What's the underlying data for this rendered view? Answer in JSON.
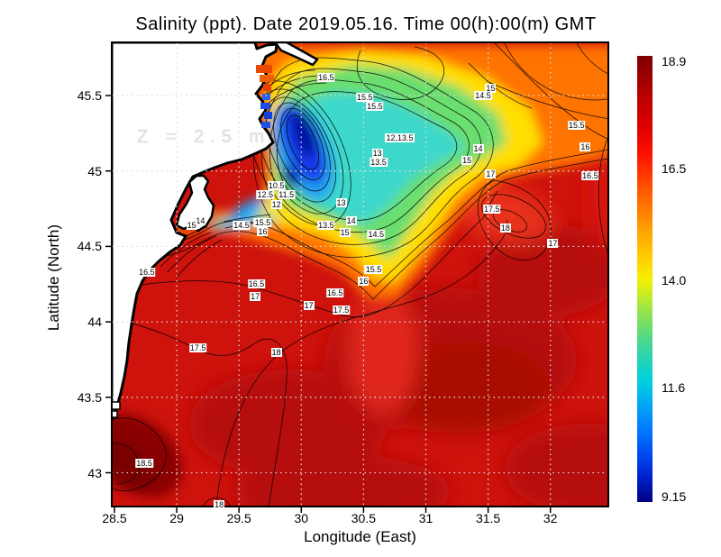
{
  "title": "Salinity (ppt). Date 2019.05.16. Time 00(h):00(m) GMT",
  "depth_annotation": "Z = 2.5 m",
  "axes": {
    "xlabel": "Longitude (East)",
    "ylabel": "Latitude (North)"
  },
  "colors": {
    "sea_base_red": "#ce120c",
    "dark_red_patch": "#b60e07",
    "darkest_red": "#7c0202",
    "orange_band": "#ff7300",
    "yellow_band": "#ffdf00",
    "green_band": "#6ade6e",
    "cyan_band": "#3cd8cc",
    "plume_blue": "#1238e8",
    "plume_core": "#000f9e",
    "land": "#ffffff",
    "coastline": "#000000",
    "gridline": "#dcdcdc",
    "contour_line": "#000000"
  },
  "chart_data": {
    "type": "heatmap",
    "subtype": "filled-contour-map",
    "variable": "Salinity",
    "units": "ppt",
    "date": "2019.05.16",
    "time": "00(h):00(m) GMT",
    "depth": "Z = 2.5 m",
    "title": "Salinity (ppt). Date 2019.05.16. Time 00(h):00(m) GMT",
    "xlabel": "Longitude (East)",
    "ylabel": "Latitude (North)",
    "xlim": [
      28.5,
      32.47
    ],
    "ylim": [
      42.77,
      45.85
    ],
    "grid": true,
    "x_ticks": [
      "28.5",
      "29",
      "29.5",
      "30",
      "30.5",
      "31",
      "31.5",
      "32"
    ],
    "y_ticks": [
      "45.5",
      "45",
      "44.5",
      "44",
      "43.5",
      "43"
    ],
    "colorbar": {
      "min": 9.15,
      "max": 18.9,
      "tick_labels": [
        "18.9",
        "16.5",
        "14.0",
        "11.6",
        "9.15"
      ],
      "tick_values": [
        18.9,
        16.5,
        14.0,
        11.6,
        9.15
      ],
      "palette": "jet",
      "palette_hex": [
        "#000082",
        "#0028e0",
        "#0080ff",
        "#00d0e0",
        "#54da84",
        "#c0ec28",
        "#fff500",
        "#ffd300",
        "#ff7800",
        "#ff1000",
        "#bf0000",
        "#7f0000"
      ]
    },
    "contour_labels": [
      {
        "lon": 30.2,
        "lat": 45.62,
        "v": "16.5"
      },
      {
        "lon": 31.52,
        "lat": 45.55,
        "v": "15"
      },
      {
        "lon": 31.46,
        "lat": 45.5,
        "v": "14.5"
      },
      {
        "lon": 30.51,
        "lat": 45.49,
        "v": "15.5"
      },
      {
        "lon": 30.59,
        "lat": 45.43,
        "v": "15.5"
      },
      {
        "lon": 32.21,
        "lat": 45.3,
        "v": "15.5"
      },
      {
        "lon": 32.28,
        "lat": 45.16,
        "v": "16"
      },
      {
        "lon": 30.79,
        "lat": 45.22,
        "v": "12,13.5"
      },
      {
        "lon": 30.61,
        "lat": 45.12,
        "v": "13"
      },
      {
        "lon": 30.62,
        "lat": 45.06,
        "v": "13.5"
      },
      {
        "lon": 31.42,
        "lat": 45.15,
        "v": "14"
      },
      {
        "lon": 31.33,
        "lat": 45.07,
        "v": "15"
      },
      {
        "lon": 31.52,
        "lat": 44.98,
        "v": "17"
      },
      {
        "lon": 32.32,
        "lat": 44.97,
        "v": "16.5"
      },
      {
        "lon": 29.8,
        "lat": 44.9,
        "v": "10.5"
      },
      {
        "lon": 29.71,
        "lat": 44.84,
        "v": "12.5"
      },
      {
        "lon": 29.88,
        "lat": 44.84,
        "v": "11.5"
      },
      {
        "lon": 29.8,
        "lat": 44.78,
        "v": "12"
      },
      {
        "lon": 31.53,
        "lat": 44.75,
        "v": "17.5"
      },
      {
        "lon": 30.32,
        "lat": 44.79,
        "v": "13"
      },
      {
        "lon": 30.2,
        "lat": 44.64,
        "v": "13.5"
      },
      {
        "lon": 30.4,
        "lat": 44.67,
        "v": "14"
      },
      {
        "lon": 30.35,
        "lat": 44.59,
        "v": "15"
      },
      {
        "lon": 30.6,
        "lat": 44.58,
        "v": "14.5"
      },
      {
        "lon": 31.64,
        "lat": 44.62,
        "v": "18"
      },
      {
        "lon": 32.02,
        "lat": 44.52,
        "v": "17"
      },
      {
        "lon": 29.19,
        "lat": 44.67,
        "v": "14"
      },
      {
        "lon": 29.12,
        "lat": 44.64,
        "v": "15"
      },
      {
        "lon": 29.52,
        "lat": 44.64,
        "v": "14.5"
      },
      {
        "lon": 29.69,
        "lat": 44.66,
        "v": "15.5"
      },
      {
        "lon": 29.69,
        "lat": 44.6,
        "v": "16"
      },
      {
        "lon": 30.58,
        "lat": 44.35,
        "v": "15.5"
      },
      {
        "lon": 30.5,
        "lat": 44.27,
        "v": "16"
      },
      {
        "lon": 28.76,
        "lat": 44.33,
        "v": "16.5"
      },
      {
        "lon": 29.64,
        "lat": 44.25,
        "v": "16.5"
      },
      {
        "lon": 29.63,
        "lat": 44.17,
        "v": "17"
      },
      {
        "lon": 30.27,
        "lat": 44.19,
        "v": "16.5"
      },
      {
        "lon": 30.06,
        "lat": 44.11,
        "v": "17"
      },
      {
        "lon": 30.32,
        "lat": 44.08,
        "v": "17.5"
      },
      {
        "lon": 29.17,
        "lat": 43.83,
        "v": "17.5"
      },
      {
        "lon": 29.8,
        "lat": 43.8,
        "v": "18"
      },
      {
        "lon": 28.74,
        "lat": 43.06,
        "v": "18.5"
      },
      {
        "lon": 29.34,
        "lat": 42.79,
        "v": "18"
      }
    ]
  }
}
